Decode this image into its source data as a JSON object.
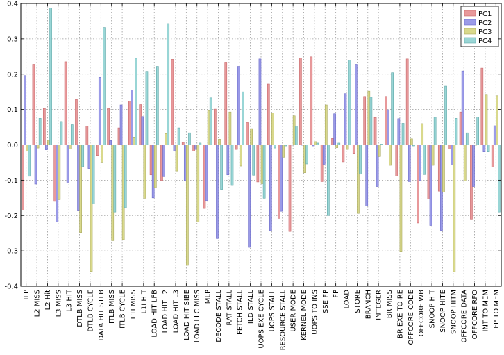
{
  "chart_data": {
    "type": "bar",
    "title": "",
    "xlabel": "",
    "ylabel": "",
    "ylim": [
      -0.4,
      0.4
    ],
    "yticks": [
      "-0.4",
      "-0.3",
      "-0.2",
      "-0.1",
      "0.0",
      "0.1",
      "0.2",
      "0.3",
      "0.4"
    ],
    "ytick_values": [
      -0.4,
      -0.3,
      -0.2,
      -0.1,
      0.0,
      0.1,
      0.2,
      0.3,
      0.4
    ],
    "grid": true,
    "legend_position": "top-right",
    "categories": [
      "ILP",
      "L2 MISS",
      "L2 Hit",
      "L3 MISS",
      "L3 HIT",
      "DTLB MISS",
      "DTLB CYCLE",
      "DATA HIT STLB",
      "ITLB MISS",
      "ITLB CYCLE",
      "L1I MISS",
      "L1I HIT",
      "LOAD HIT LFB",
      "LOAD HIT L2",
      "LOAD HIT L3",
      "LOAD HIT SIBE",
      "LOAD LLC MISS",
      "MLP",
      "DECODE STALL",
      "RAT STALL",
      "FETCH STALL",
      "ILD STALL",
      "UOPS EXE CYCLE",
      "UOPS STALL",
      "RESOURCE STALL",
      "USER MODE",
      "KERNEL MODE",
      "UOPS TO INS",
      "SSE FP",
      "FP",
      "LOAD",
      "STORE",
      "BRANCH",
      "INTEGER",
      "BR MISS",
      "BR EXE TO RE",
      "OFFCORE CODE",
      "OFFCORE WB",
      "SNOOP HIT",
      "SNOOP HITE",
      "SNOOP HITM",
      "OFFCORE DATA",
      "OFFCORE RFO",
      "INT TO MEM",
      "FP TO MEM"
    ],
    "series": [
      {
        "name": "PC1",
        "color": "#e8999b",
        "edge": "#c96a6c",
        "values": [
          -0.185,
          0.228,
          0.103,
          -0.16,
          0.235,
          0.128,
          0.053,
          -0.03,
          0.103,
          0.048,
          0.124,
          0.114,
          -0.085,
          -0.101,
          0.242,
          0.007,
          -0.018,
          -0.18,
          0.101,
          0.234,
          -0.013,
          0.063,
          -0.105,
          0.172,
          -0.208,
          -0.245,
          0.246,
          0.249,
          -0.104,
          0.018,
          -0.048,
          -0.024,
          0.137,
          0.077,
          0.137,
          -0.088,
          0.243,
          -0.221,
          -0.153,
          -0.131,
          -0.012,
          0.093,
          -0.21,
          0.217,
          -0.063
        ]
      },
      {
        "name": "PC2",
        "color": "#9b9be8",
        "edge": "#6b6bc9",
        "values": [
          0.196,
          -0.111,
          -0.014,
          -0.218,
          -0.106,
          -0.187,
          -0.067,
          0.191,
          0.012,
          0.113,
          0.155,
          0.08,
          -0.15,
          -0.09,
          -0.017,
          -0.101,
          -0.013,
          -0.158,
          -0.265,
          -0.085,
          0.222,
          -0.29,
          0.243,
          -0.243,
          -0.188,
          0.0,
          -0.001,
          -0.003,
          -0.055,
          0.088,
          0.145,
          0.228,
          -0.173,
          -0.118,
          0.099,
          0.074,
          -0.104,
          -0.101,
          -0.228,
          -0.242,
          -0.057,
          0.209,
          -0.118,
          -0.02,
          0.054
        ]
      },
      {
        "name": "PC3",
        "color": "#d9d98c",
        "edge": "#a8a85c",
        "values": [
          -0.018,
          -0.009,
          0.013,
          -0.155,
          -0.012,
          -0.248,
          -0.358,
          -0.049,
          -0.271,
          -0.268,
          0.022,
          -0.151,
          -0.121,
          0.032,
          -0.074,
          -0.341,
          -0.218,
          0.097,
          0.016,
          0.093,
          -0.06,
          0.046,
          -0.11,
          0.09,
          -0.035,
          0.082,
          -0.079,
          0.009,
          0.113,
          -0.008,
          -0.013,
          -0.194,
          0.152,
          -0.033,
          -0.058,
          -0.303,
          0.017,
          0.06,
          -0.058,
          -0.134,
          -0.359,
          -0.102,
          -0.001,
          0.141,
          0.139
        ]
      },
      {
        "name": "PC4",
        "color": "#99d6d6",
        "edge": "#5fa8a8",
        "values": [
          -0.089,
          0.075,
          0.387,
          0.066,
          0.057,
          -0.062,
          -0.167,
          0.332,
          -0.19,
          -0.178,
          0.245,
          0.208,
          0.222,
          0.343,
          0.048,
          0.034,
          0.005,
          0.133,
          -0.126,
          -0.115,
          0.15,
          -0.086,
          -0.151,
          -0.009,
          -0.003,
          0.053,
          -0.054,
          0.005,
          -0.2,
          0.005,
          0.24,
          -0.083,
          0.135,
          0.002,
          0.204,
          0.061,
          -0.003,
          -0.084,
          0.078,
          0.166,
          0.075,
          0.034,
          0.079,
          -0.02,
          -0.19
        ]
      }
    ]
  }
}
